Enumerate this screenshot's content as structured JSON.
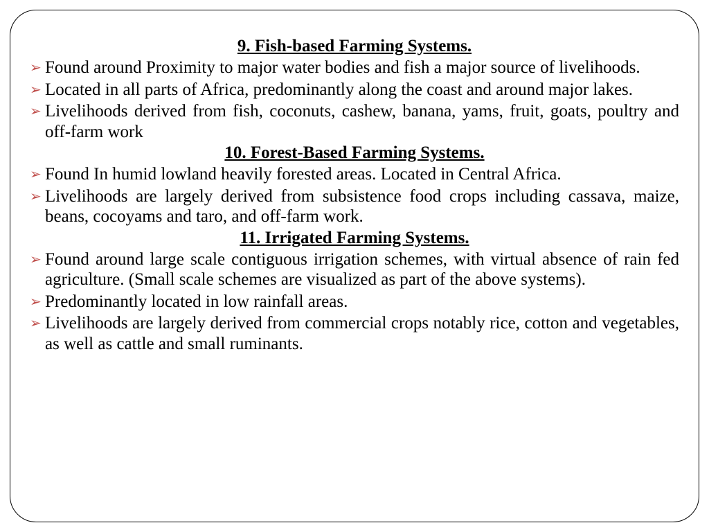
{
  "frame": {
    "border_color": "#000000",
    "border_radius": 38,
    "background": "#ffffff"
  },
  "bullet_color": "#c0504d",
  "text_color": "#000000",
  "font_family": "Times New Roman",
  "heading_fontsize": 25,
  "body_fontsize": 25,
  "sections": [
    {
      "heading": "9. Fish-based Farming Systems.",
      "bullets": [
        "Found around Proximity to major water bodies and fish a major source of livelihoods.",
        " Located in all parts of Africa, predominantly along the coast and around major lakes.",
        " Livelihoods derived from fish, coconuts, cashew, banana, yams, fruit, goats, poultry and off-farm work"
      ]
    },
    {
      "heading": "10. Forest-Based Farming Systems.",
      "bullets": [
        "Found  In humid lowland heavily forested areas. Located in Central Africa.",
        "Livelihoods are largely derived from subsistence food crops including cassava, maize, beans, cocoyams and taro, and off-farm work."
      ]
    },
    {
      "heading": "11. Irrigated Farming Systems.",
      "bullets": [
        "Found around  large scale contiguous irrigation schemes, with virtual absence of rain fed agriculture. (Small scale schemes are visualized as part of the above systems).",
        " Predominantly located in low rainfall areas.",
        " Livelihoods are largely derived from commercial crops notably rice, cotton and vegetables, as well as cattle and small ruminants."
      ]
    }
  ]
}
